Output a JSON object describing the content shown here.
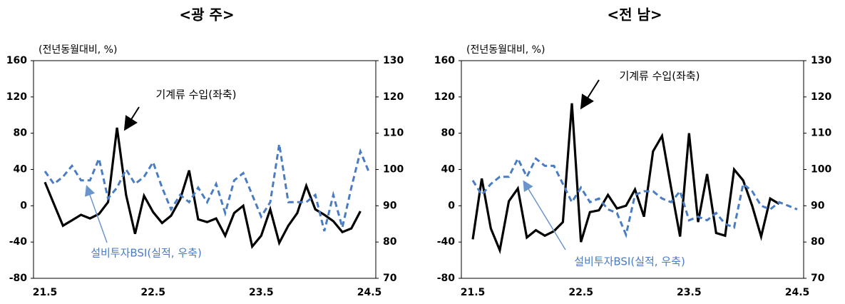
{
  "chart_data": [
    {
      "type": "line",
      "title": "<광 주>",
      "y_label": "(전년동월대비, %)",
      "categories": [
        "21.5",
        null,
        null,
        null,
        null,
        null,
        null,
        null,
        null,
        null,
        null,
        null,
        "22.5",
        null,
        null,
        null,
        null,
        null,
        null,
        null,
        null,
        null,
        null,
        null,
        "23.5",
        null,
        null,
        null,
        null,
        null,
        null,
        null,
        null,
        null,
        null,
        null,
        "24.5"
      ],
      "series": [
        {
          "name": "기계류 수입(좌축)",
          "color": "#000000",
          "dashed": false,
          "values": [
            26,
            2,
            -22,
            -16,
            -10,
            -14,
            -9,
            4,
            86,
            12,
            -31,
            11,
            -7,
            -19,
            -11,
            7,
            39,
            -15,
            -18,
            -14,
            -33,
            -8,
            0,
            -45,
            -33,
            -4,
            -41,
            -22,
            -8,
            22,
            -4,
            -10,
            -17,
            -29,
            -25,
            -6,
            null
          ]
        },
        {
          "name": "설비투자BSI(실적, 우축)",
          "color": "#4a7cc4",
          "dashed": true,
          "axis": "y2",
          "values": [
            99.5,
            96,
            98,
            101,
            97,
            97,
            103,
            92,
            95,
            100,
            96,
            98,
            102,
            95,
            89,
            93,
            91,
            95,
            91,
            96,
            88,
            97,
            99,
            93,
            87,
            91,
            107,
            91,
            91,
            91,
            93,
            83,
            93,
            84,
            95,
            105,
            99
          ]
        }
      ],
      "ylim": [
        -80,
        160
      ],
      "yticks": [
        -80,
        -40,
        0,
        40,
        80,
        120,
        160
      ],
      "y2lim": [
        70,
        130
      ],
      "y2ticks": [
        70,
        80,
        90,
        100,
        110,
        120,
        130
      ]
    },
    {
      "type": "line",
      "title": "<전 남>",
      "y_label": "(전년동월대비, %)",
      "categories": [
        "21.5",
        null,
        null,
        null,
        null,
        null,
        null,
        null,
        null,
        null,
        null,
        null,
        "22.5",
        null,
        null,
        null,
        null,
        null,
        null,
        null,
        null,
        null,
        null,
        null,
        "23.5",
        null,
        null,
        null,
        null,
        null,
        null,
        null,
        null,
        null,
        null,
        null,
        "24.5"
      ],
      "series": [
        {
          "name": "기계류 수입(좌축)",
          "color": "#000000",
          "dashed": false,
          "values": [
            -37,
            30,
            -25,
            -49,
            5,
            19,
            -35,
            -27,
            -33,
            -28,
            -18,
            113,
            -40,
            -7,
            -5,
            12,
            -3,
            0,
            18,
            -12,
            60,
            77,
            20,
            -34,
            80,
            -18,
            35,
            -30,
            -33,
            40,
            28,
            0,
            -34,
            8,
            2,
            null,
            null
          ]
        },
        {
          "name": "설비투자BSI(실적, 우축)",
          "color": "#4a7cc4",
          "dashed": true,
          "axis": "y2",
          "values": [
            97,
            93,
            96,
            98,
            98,
            103,
            98,
            103,
            101,
            101,
            96,
            91,
            95,
            91,
            92,
            89,
            88,
            82,
            93,
            94,
            94,
            92,
            91,
            94,
            86,
            87,
            86,
            88,
            85,
            84,
            96,
            94,
            90,
            89,
            91,
            90,
            89
          ]
        }
      ],
      "ylim": [
        -80,
        160
      ],
      "yticks": [
        -80,
        -40,
        0,
        40,
        80,
        120,
        160
      ],
      "y2lim": [
        70,
        130
      ],
      "y2ticks": [
        70,
        80,
        90,
        100,
        110,
        120,
        130
      ]
    }
  ]
}
